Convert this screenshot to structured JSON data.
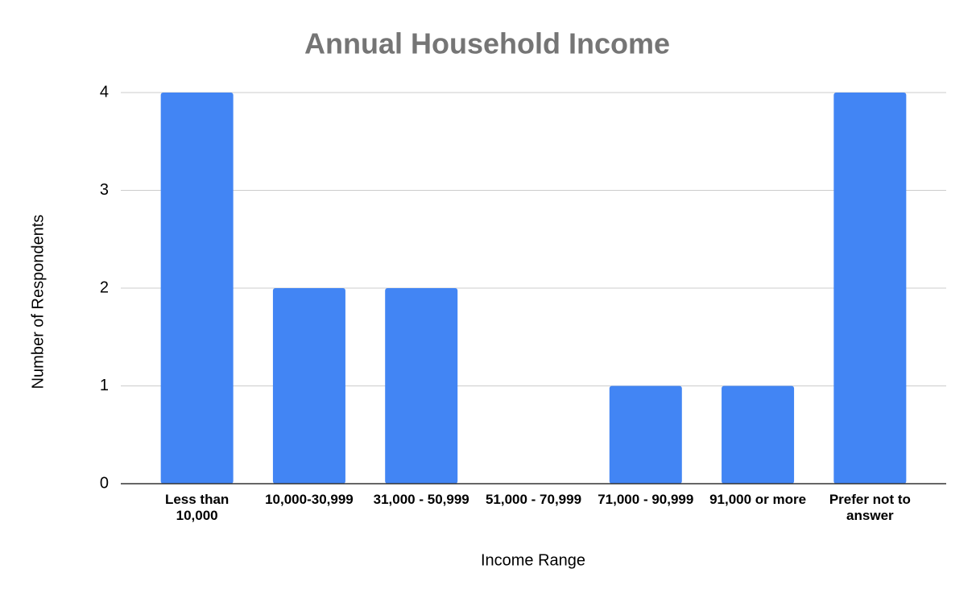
{
  "chart_data": {
    "type": "bar",
    "title": "Annual Household Income",
    "x_label": "Income Range",
    "y_label": "Number of Respondents",
    "categories": [
      "Less than 10,000",
      "10,000-30,999",
      "31,000 - 50,999",
      "51,000 - 70,999",
      "71,000 - 90,999",
      "91,000 or more",
      "Prefer not to answer"
    ],
    "values": [
      4,
      2,
      2,
      0,
      1,
      1,
      4
    ],
    "color": "#4285f4",
    "ylim": [
      0,
      4
    ],
    "yticks": [
      0,
      1,
      2,
      3,
      4
    ],
    "grid": true
  }
}
